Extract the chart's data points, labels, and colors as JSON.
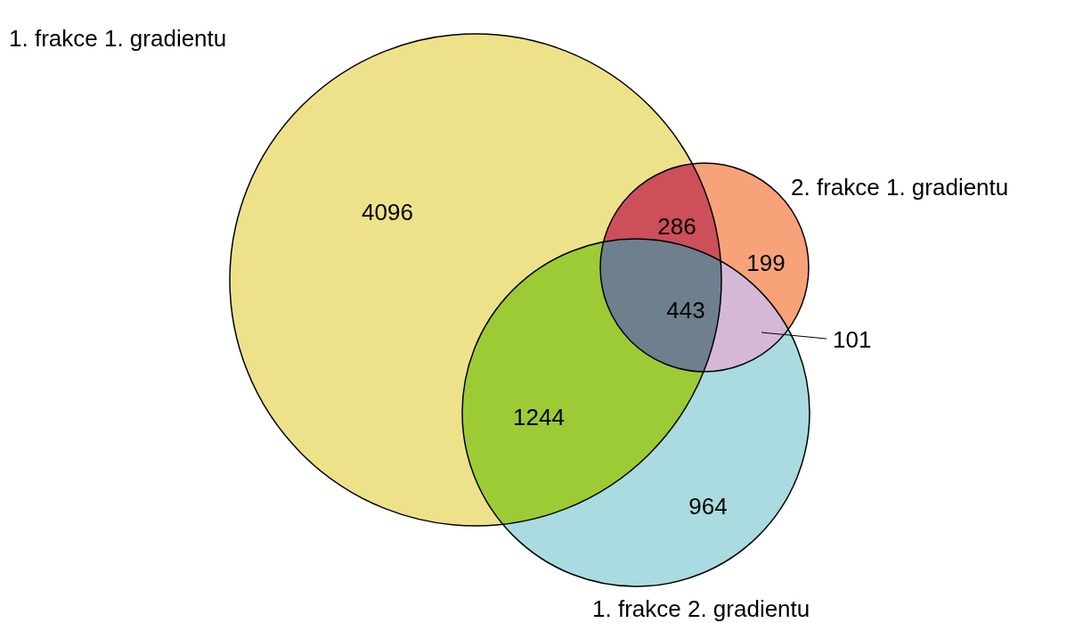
{
  "chart_data": {
    "type": "other",
    "categories": [
      null,
      null,
      null,
      null,
      null,
      null,
      null
    ],
    "values": [
      4096,
      286,
      199,
      443,
      101,
      1244,
      964
    ],
    "colors": [
      "#ede28a",
      "#cc4f5a",
      "#f8a27a",
      "#6e7f8e",
      "#d5b8d5",
      "#9dcb35",
      "#a9dbe0"
    ],
    "annotations": [
      "1. frakce 1. gradientu",
      "2. frakce 1. gradientu",
      "1. frakce 2. gradientu"
    ],
    "data_labels": true
  }
}
